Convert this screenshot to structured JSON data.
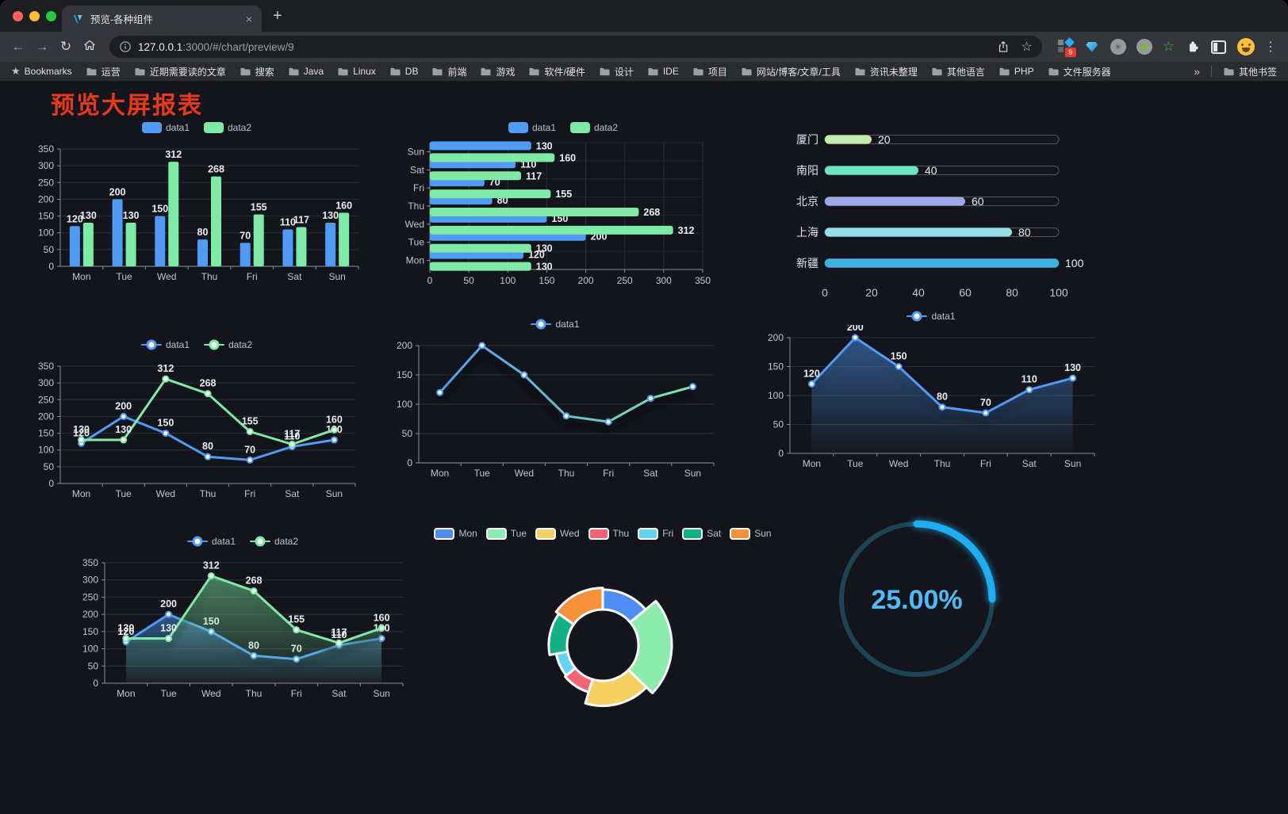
{
  "browser": {
    "tab_title": "预览-各种组件",
    "url": {
      "host": "127.0.0.1",
      "rest": ":3000/#/chart/preview/9"
    },
    "bookmarks_root": "Bookmarks",
    "bookmarks": [
      "运营",
      "近期需要读的文章",
      "搜索",
      "Java",
      "Linux",
      "DB",
      "前端",
      "游戏",
      "软件/硬件",
      "设计",
      "IDE",
      "项目",
      "网站/博客/文章/工具",
      "资讯未整理",
      "其他语言",
      "PHP",
      "文件服务器"
    ],
    "bookmarks_overflow": "»",
    "other_bookmarks": "其他书签",
    "extensions_badge": "9"
  },
  "icons": {
    "close": "×",
    "new_tab": "+",
    "back": "←",
    "forward": "→",
    "reload": "↻",
    "menu": "⋮",
    "bookmark_star": "☆",
    "root_star": "★",
    "asterisk": "✳",
    "green_star": "☆"
  },
  "page": {
    "title": "预览大屏报表",
    "title_color": "#e8391a",
    "background": "#14151c"
  },
  "chart_data": [
    {
      "id": "bar-grouped",
      "type": "bar",
      "categories": [
        "Mon",
        "Tue",
        "Wed",
        "Thu",
        "Fri",
        "Sat",
        "Sun"
      ],
      "series": [
        {
          "name": "data1",
          "color": "#4f9bf5",
          "values": [
            120,
            200,
            150,
            80,
            70,
            110,
            130
          ]
        },
        {
          "name": "data2",
          "color": "#7eeaa5",
          "values": [
            130,
            130,
            312,
            268,
            155,
            117,
            160
          ]
        }
      ],
      "ylim": [
        0,
        350
      ],
      "yticks": [
        0,
        50,
        100,
        150,
        200,
        250,
        300,
        350
      ],
      "show_labels": true,
      "legend_position": "top"
    },
    {
      "id": "bar-horizontal",
      "type": "bar-h",
      "categories": [
        "Mon",
        "Tue",
        "Wed",
        "Thu",
        "Fri",
        "Sat",
        "Sun"
      ],
      "series": [
        {
          "name": "data1",
          "color": "#4f9bf5",
          "values": [
            120,
            200,
            150,
            80,
            70,
            110,
            130
          ]
        },
        {
          "name": "data2",
          "color": "#7eeaa5",
          "values": [
            130,
            130,
            312,
            268,
            155,
            117,
            160
          ]
        }
      ],
      "xlim": [
        0,
        350
      ],
      "xticks": [
        0,
        50,
        100,
        150,
        200,
        250,
        300,
        350
      ],
      "show_labels": true,
      "legend_position": "top"
    },
    {
      "id": "progress-list",
      "type": "progress",
      "items": [
        {
          "label": "厦门",
          "value": 20,
          "color": "#c4ebad"
        },
        {
          "label": "南阳",
          "value": 40,
          "color": "#6be6c1"
        },
        {
          "label": "北京",
          "value": 60,
          "color": "#a0a7e6"
        },
        {
          "label": "上海",
          "value": 80,
          "color": "#96dee8"
        },
        {
          "label": "新疆",
          "value": 100,
          "color": "#3fb1e3"
        }
      ],
      "xlim": [
        0,
        100
      ],
      "xticks": [
        0,
        20,
        40,
        60,
        80,
        100
      ]
    },
    {
      "id": "line-two",
      "type": "line",
      "categories": [
        "Mon",
        "Tue",
        "Wed",
        "Thu",
        "Fri",
        "Sat",
        "Sun"
      ],
      "series": [
        {
          "name": "data1",
          "color": "#4f9bf5",
          "values": [
            120,
            200,
            150,
            80,
            70,
            110,
            130
          ]
        },
        {
          "name": "data2",
          "color": "#7eeaa5",
          "values": [
            130,
            130,
            312,
            268,
            155,
            117,
            160
          ]
        }
      ],
      "ylim": [
        0,
        350
      ],
      "yticks": [
        0,
        50,
        100,
        150,
        200,
        250,
        300,
        350
      ],
      "show_labels": true
    },
    {
      "id": "line-gradient",
      "type": "line",
      "categories": [
        "Mon",
        "Tue",
        "Wed",
        "Thu",
        "Fri",
        "Sat",
        "Sun"
      ],
      "series": [
        {
          "name": "data1",
          "color": "#4f9bf5",
          "color2": "#7eeaa5",
          "values": [
            120,
            200,
            150,
            80,
            70,
            110,
            130
          ]
        }
      ],
      "ylim": [
        0,
        200
      ],
      "yticks": [
        0,
        50,
        100,
        150,
        200
      ],
      "show_labels": false,
      "shadow": true
    },
    {
      "id": "area-one",
      "type": "line",
      "categories": [
        "Mon",
        "Tue",
        "Wed",
        "Thu",
        "Fri",
        "Sat",
        "Sun"
      ],
      "series": [
        {
          "name": "data1",
          "color": "#4f9bf5",
          "values": [
            120,
            200,
            150,
            80,
            70,
            110,
            130
          ],
          "area": true
        }
      ],
      "ylim": [
        0,
        200
      ],
      "yticks": [
        0,
        50,
        100,
        150,
        200
      ],
      "show_labels": true,
      "shadow": true
    },
    {
      "id": "area-two",
      "type": "line",
      "categories": [
        "Mon",
        "Tue",
        "Wed",
        "Thu",
        "Fri",
        "Sat",
        "Sun"
      ],
      "series": [
        {
          "name": "data1",
          "color": "#4f9bf5",
          "values": [
            120,
            200,
            150,
            80,
            70,
            110,
            130
          ],
          "area": true
        },
        {
          "name": "data2",
          "color": "#7eeaa5",
          "values": [
            130,
            130,
            312,
            268,
            155,
            117,
            160
          ],
          "area": true
        }
      ],
      "ylim": [
        0,
        350
      ],
      "yticks": [
        0,
        50,
        100,
        150,
        200,
        250,
        300,
        350
      ],
      "show_labels": true,
      "shadow": true
    },
    {
      "id": "rose-pie",
      "type": "pie",
      "rose": true,
      "items": [
        {
          "name": "Mon",
          "value": 120,
          "color": "#4e8ef2"
        },
        {
          "name": "Tue",
          "value": 200,
          "color": "#8cecad"
        },
        {
          "name": "Wed",
          "value": 150,
          "color": "#f5d164"
        },
        {
          "name": "Thu",
          "value": 80,
          "color": "#f56472"
        },
        {
          "name": "Fri",
          "value": 70,
          "color": "#66d2f5"
        },
        {
          "name": "Sat",
          "value": 110,
          "color": "#12b286"
        },
        {
          "name": "Sun",
          "value": 130,
          "color": "#f5913d"
        }
      ]
    },
    {
      "id": "gauge",
      "type": "gauge",
      "value": 25,
      "label": "25.00%",
      "color": "#1fadf2",
      "track_color": "#1c4554",
      "text_color": "#4fbbf5"
    }
  ]
}
